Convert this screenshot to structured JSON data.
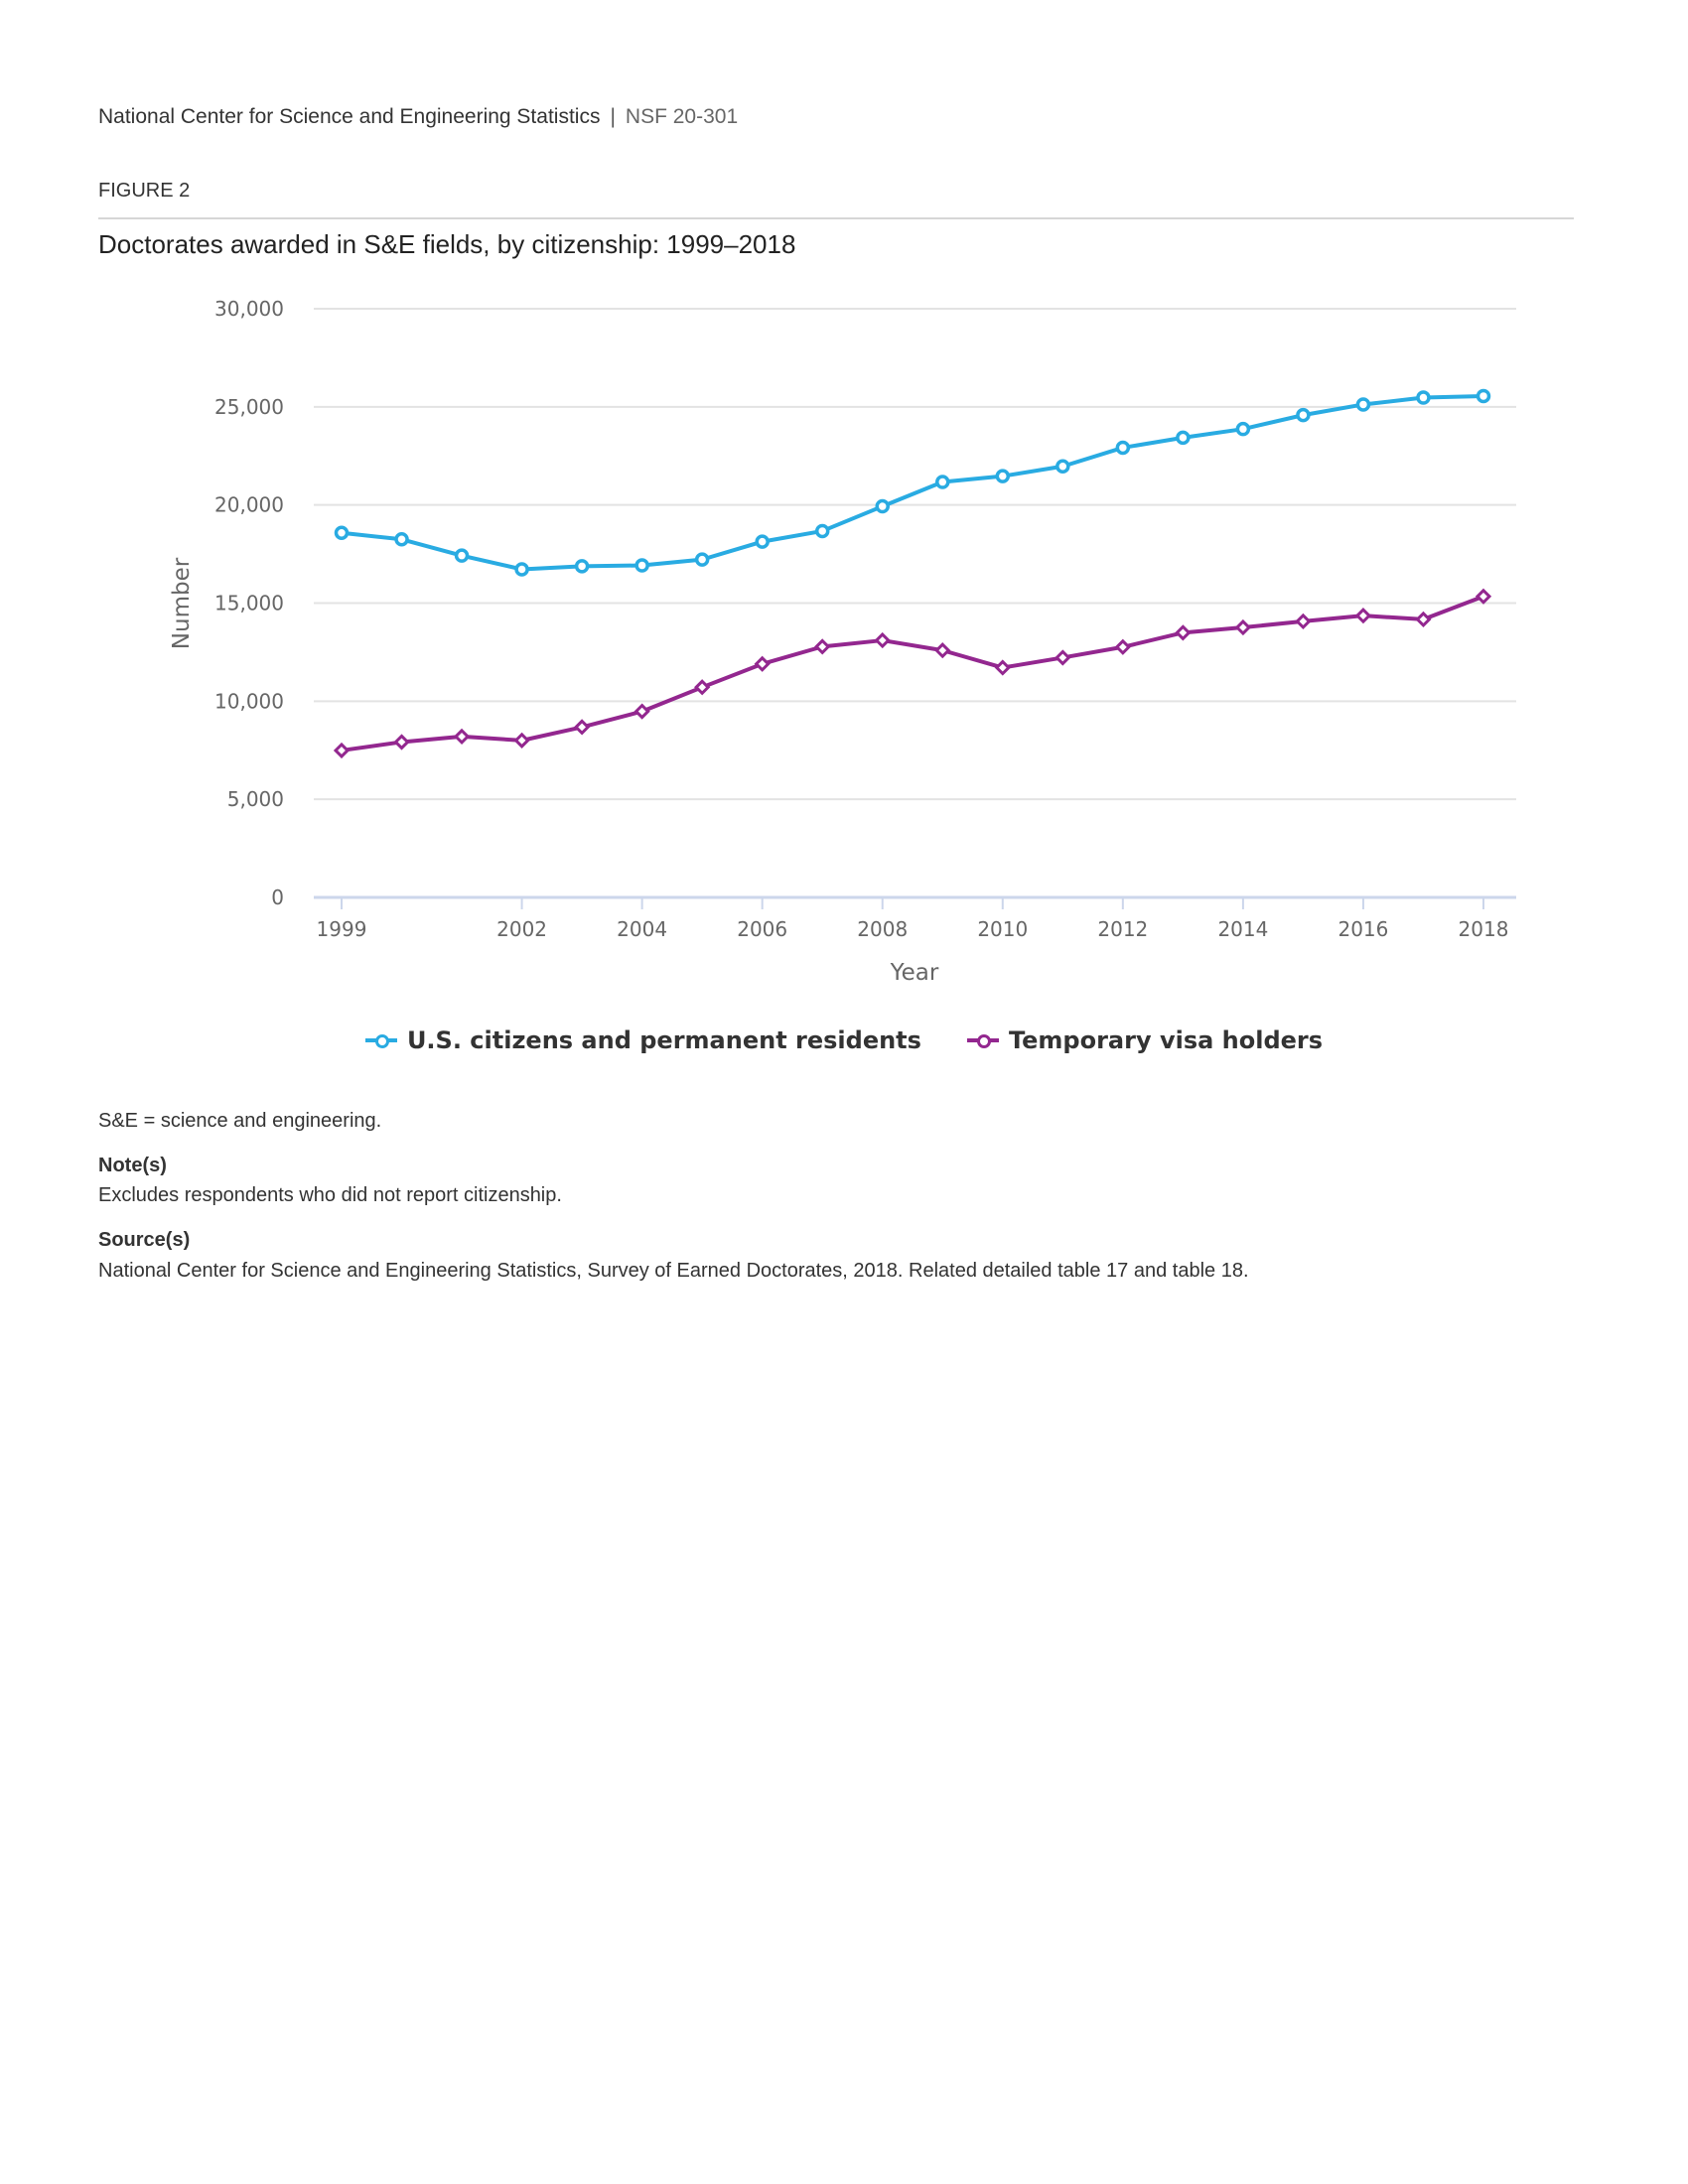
{
  "header": {
    "organization": "National Center for Science and Engineering Statistics",
    "separator": "|",
    "report_number": "NSF 20-301"
  },
  "figure_label": "FIGURE 2",
  "legend": {
    "items": [
      {
        "label": "U.S. citizens and permanent residents",
        "color": "#29abe2"
      },
      {
        "label": "Temporary visa holders",
        "color": "#93278f"
      }
    ]
  },
  "footnotes": {
    "abbreviation": "S&E = science and engineering.",
    "notes_heading": "Note(s)",
    "notes_text": "Excludes respondents who did not report citizenship.",
    "sources_heading": "Source(s)",
    "sources_text": "National Center for Science and Engineering Statistics, Survey of Earned Doctorates, 2018. Related detailed table 17 and table 18."
  },
  "chart_data": {
    "type": "line",
    "title": "Doctorates awarded in S&E fields, by citizenship: 1999–2018",
    "xlabel": "Year",
    "ylabel": "Number",
    "x": [
      1999,
      2000,
      2001,
      2002,
      2003,
      2004,
      2005,
      2006,
      2007,
      2008,
      2009,
      2010,
      2011,
      2012,
      2013,
      2014,
      2015,
      2016,
      2017,
      2018
    ],
    "xlim": [
      1999,
      2018
    ],
    "x_ticks": [
      "1999",
      "2002",
      "2004",
      "2006",
      "2008",
      "2010",
      "2012",
      "2014",
      "2016",
      "2018"
    ],
    "x_tick_values": [
      1999,
      2002,
      2004,
      2006,
      2008,
      2010,
      2012,
      2014,
      2016,
      2018
    ],
    "ylim": [
      0,
      30000
    ],
    "y_ticks": [
      "0",
      "5,000",
      "10,000",
      "15,000",
      "20,000",
      "25,000",
      "30,000"
    ],
    "y_tick_values": [
      0,
      5000,
      10000,
      15000,
      20000,
      25000,
      30000
    ],
    "grid": true,
    "legend_position": "bottom",
    "series": [
      {
        "name": "U.S. citizens and permanent residents",
        "color": "#29abe2",
        "marker": "circle",
        "values": [
          18580,
          18250,
          17420,
          16720,
          16880,
          16920,
          17220,
          18130,
          18670,
          19930,
          21170,
          21470,
          21970,
          22920,
          23430,
          23870,
          24580,
          25120,
          25470,
          25550
        ]
      },
      {
        "name": "Temporary visa holders",
        "color": "#93278f",
        "marker": "diamond",
        "values": [
          7490,
          7920,
          8200,
          8000,
          8680,
          9480,
          10710,
          11900,
          12780,
          13100,
          12590,
          11710,
          12220,
          12760,
          13490,
          13760,
          14070,
          14360,
          14170,
          15340
        ]
      }
    ]
  }
}
